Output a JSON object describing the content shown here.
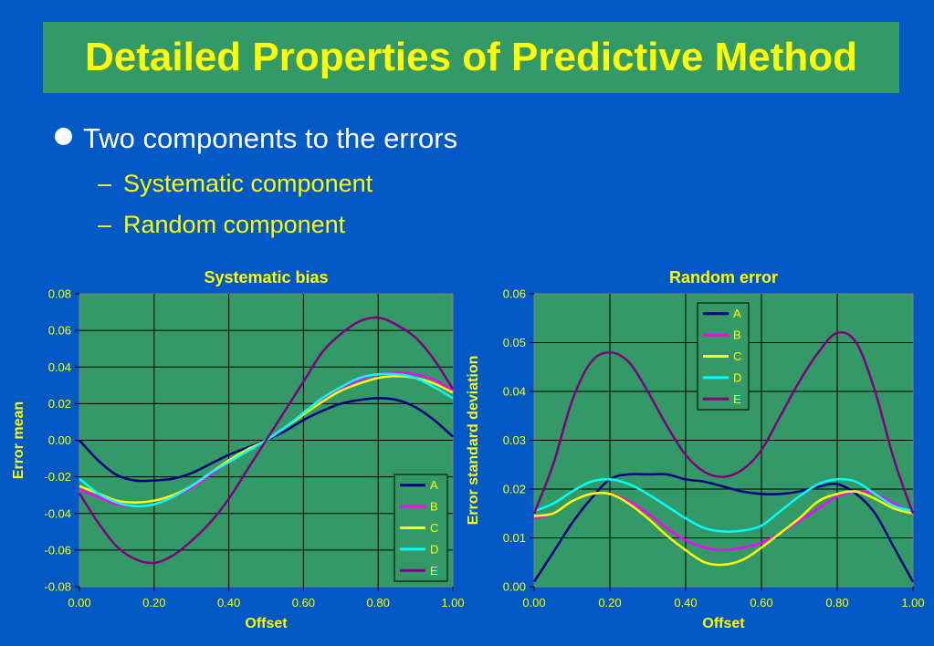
{
  "slide": {
    "title": "Detailed Properties of Predictive Method",
    "bullet": "Two components to the errors",
    "sub_bullets": [
      "Systematic component",
      "Random component"
    ],
    "colors": {
      "background": "#0059c4",
      "title_box": "#339966",
      "title_text": "#ffff00",
      "plot_area": "#339966",
      "axis_text": "#ffff00"
    }
  },
  "chart_data": [
    {
      "type": "line",
      "title": "Systematic bias",
      "xlabel": "Offset",
      "ylabel": "Error mean",
      "xlim": [
        0,
        1
      ],
      "ylim": [
        -0.08,
        0.08
      ],
      "x_ticks": [
        "0.00",
        "0.20",
        "0.40",
        "0.60",
        "0.80",
        "1.00"
      ],
      "y_ticks": [
        "-0.08",
        "-0.06",
        "-0.04",
        "-0.02",
        "0.00",
        "0.02",
        "0.04",
        "0.06",
        "0.08"
      ],
      "grid": true,
      "legend_position": "bottom-right",
      "x": [
        0.0,
        0.05,
        0.1,
        0.15,
        0.2,
        0.25,
        0.3,
        0.35,
        0.4,
        0.45,
        0.5,
        0.55,
        0.6,
        0.65,
        0.7,
        0.75,
        0.8,
        0.85,
        0.9,
        0.95,
        1.0
      ],
      "series": [
        {
          "name": "A",
          "color": "#000080",
          "values": [
            0.0,
            -0.011,
            -0.019,
            -0.022,
            -0.022,
            -0.021,
            -0.018,
            -0.013,
            -0.008,
            -0.004,
            0.0,
            0.005,
            0.011,
            0.016,
            0.02,
            0.022,
            0.023,
            0.022,
            0.018,
            0.011,
            0.002
          ]
        },
        {
          "name": "B",
          "color": "#ff00ff",
          "values": [
            -0.027,
            -0.031,
            -0.035,
            -0.036,
            -0.035,
            -0.031,
            -0.026,
            -0.019,
            -0.012,
            -0.006,
            0.0,
            0.007,
            0.015,
            0.022,
            0.028,
            0.033,
            0.036,
            0.037,
            0.036,
            0.033,
            0.027
          ]
        },
        {
          "name": "C",
          "color": "#ffff00",
          "values": [
            -0.025,
            -0.029,
            -0.033,
            -0.034,
            -0.033,
            -0.03,
            -0.025,
            -0.018,
            -0.011,
            -0.005,
            0.0,
            0.007,
            0.014,
            0.021,
            0.027,
            0.031,
            0.034,
            0.035,
            0.034,
            0.031,
            0.026
          ]
        },
        {
          "name": "D",
          "color": "#00ffff",
          "values": [
            -0.021,
            -0.029,
            -0.034,
            -0.036,
            -0.035,
            -0.031,
            -0.025,
            -0.018,
            -0.012,
            -0.006,
            0.0,
            0.007,
            0.015,
            0.023,
            0.029,
            0.034,
            0.036,
            0.036,
            0.034,
            0.029,
            0.023
          ]
        },
        {
          "name": "E",
          "color": "#800080",
          "values": [
            -0.029,
            -0.045,
            -0.058,
            -0.065,
            -0.067,
            -0.063,
            -0.055,
            -0.045,
            -0.032,
            -0.016,
            0.0,
            0.016,
            0.032,
            0.048,
            0.058,
            0.065,
            0.067,
            0.063,
            0.056,
            0.044,
            0.028
          ]
        }
      ]
    },
    {
      "type": "line",
      "title": "Random error",
      "xlabel": "Offset",
      "ylabel": "Error standard deviation",
      "xlim": [
        0,
        1
      ],
      "ylim": [
        0,
        0.06
      ],
      "x_ticks": [
        "0.00",
        "0.20",
        "0.40",
        "0.60",
        "0.80",
        "1.00"
      ],
      "y_ticks": [
        "0.00",
        "0.01",
        "0.02",
        "0.03",
        "0.04",
        "0.05",
        "0.06"
      ],
      "grid": true,
      "legend_position": "top-right",
      "x": [
        0.0,
        0.05,
        0.1,
        0.15,
        0.2,
        0.25,
        0.3,
        0.35,
        0.4,
        0.45,
        0.5,
        0.55,
        0.6,
        0.65,
        0.7,
        0.75,
        0.8,
        0.85,
        0.9,
        0.95,
        1.0
      ],
      "series": [
        {
          "name": "A",
          "color": "#000080",
          "values": [
            0.001,
            0.007,
            0.013,
            0.018,
            0.022,
            0.023,
            0.023,
            0.023,
            0.022,
            0.0215,
            0.0205,
            0.0195,
            0.019,
            0.019,
            0.0195,
            0.0205,
            0.021,
            0.019,
            0.015,
            0.008,
            0.001
          ]
        },
        {
          "name": "B",
          "color": "#ff00ff",
          "values": [
            0.014,
            0.015,
            0.0175,
            0.019,
            0.019,
            0.0175,
            0.015,
            0.012,
            0.0095,
            0.008,
            0.0075,
            0.008,
            0.009,
            0.011,
            0.0135,
            0.016,
            0.0185,
            0.0195,
            0.019,
            0.017,
            0.015
          ]
        },
        {
          "name": "C",
          "color": "#ffff00",
          "values": [
            0.0145,
            0.015,
            0.0175,
            0.019,
            0.019,
            0.017,
            0.014,
            0.0105,
            0.0075,
            0.005,
            0.0045,
            0.0055,
            0.008,
            0.011,
            0.014,
            0.0175,
            0.019,
            0.0195,
            0.018,
            0.016,
            0.015
          ]
        },
        {
          "name": "D",
          "color": "#00ffff",
          "values": [
            0.0155,
            0.017,
            0.0195,
            0.0215,
            0.022,
            0.021,
            0.019,
            0.0165,
            0.014,
            0.012,
            0.0113,
            0.0115,
            0.0125,
            0.0155,
            0.0185,
            0.021,
            0.022,
            0.0215,
            0.019,
            0.0165,
            0.0155
          ]
        },
        {
          "name": "E",
          "color": "#800080",
          "values": [
            0.015,
            0.025,
            0.038,
            0.046,
            0.048,
            0.046,
            0.04,
            0.033,
            0.027,
            0.0235,
            0.0225,
            0.024,
            0.028,
            0.035,
            0.042,
            0.048,
            0.052,
            0.05,
            0.04,
            0.026,
            0.015
          ]
        }
      ]
    }
  ]
}
